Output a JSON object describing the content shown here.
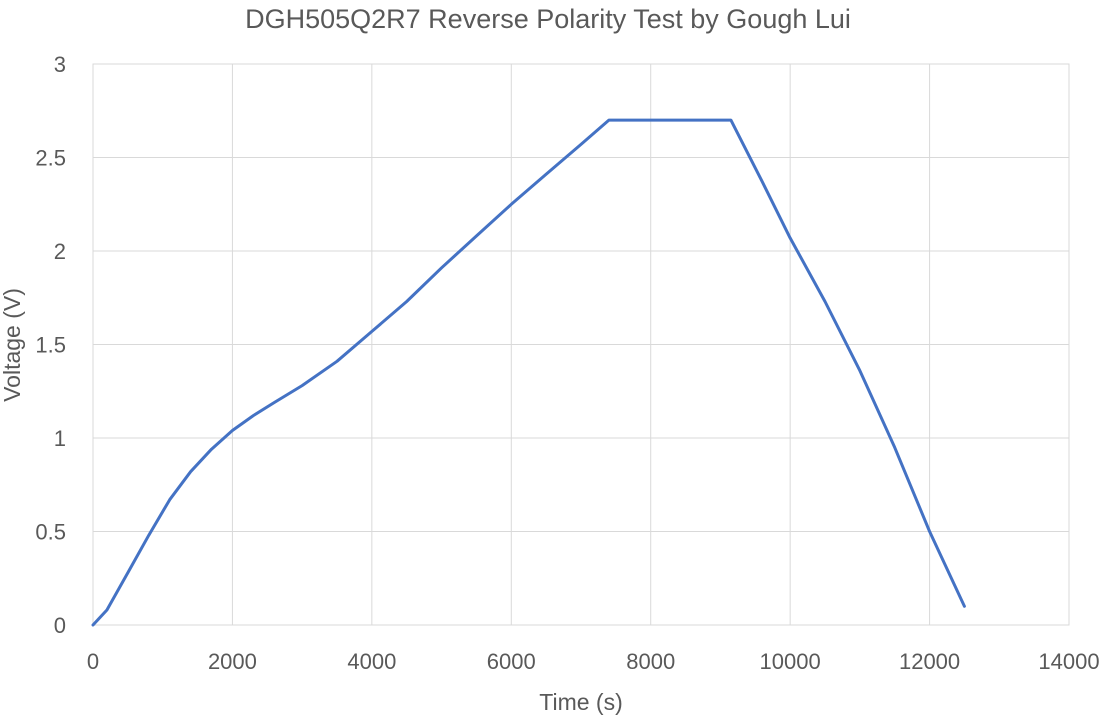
{
  "chart_data": {
    "type": "line",
    "title": "DGH505Q2R7 Reverse Polarity Test by Gough Lui",
    "xlabel": "Time (s)",
    "ylabel": "Voltage (V)",
    "xlim": [
      0,
      14000
    ],
    "ylim": [
      0,
      3
    ],
    "x_ticks": [
      "0",
      "2000",
      "4000",
      "6000",
      "8000",
      "10000",
      "12000",
      "14000"
    ],
    "y_ticks": [
      "0",
      "0.5",
      "1",
      "1.5",
      "2",
      "2.5",
      "3"
    ],
    "grid": true,
    "legend": "none",
    "series": [
      {
        "color": "#4472c4",
        "points": [
          [
            0,
            0
          ],
          [
            200,
            0.08
          ],
          [
            500,
            0.28
          ],
          [
            800,
            0.48
          ],
          [
            1100,
            0.67
          ],
          [
            1400,
            0.82
          ],
          [
            1700,
            0.94
          ],
          [
            2000,
            1.04
          ],
          [
            2300,
            1.12
          ],
          [
            2600,
            1.19
          ],
          [
            3000,
            1.28
          ],
          [
            3500,
            1.41
          ],
          [
            4000,
            1.57
          ],
          [
            4500,
            1.73
          ],
          [
            5000,
            1.91
          ],
          [
            5500,
            2.08
          ],
          [
            6000,
            2.25
          ],
          [
            6500,
            2.41
          ],
          [
            7000,
            2.57
          ],
          [
            7400,
            2.7
          ],
          [
            9150,
            2.7
          ],
          [
            9600,
            2.37
          ],
          [
            10000,
            2.07
          ],
          [
            10500,
            1.73
          ],
          [
            11000,
            1.36
          ],
          [
            11500,
            0.95
          ],
          [
            12000,
            0.5
          ],
          [
            12500,
            0.1
          ]
        ]
      }
    ]
  }
}
